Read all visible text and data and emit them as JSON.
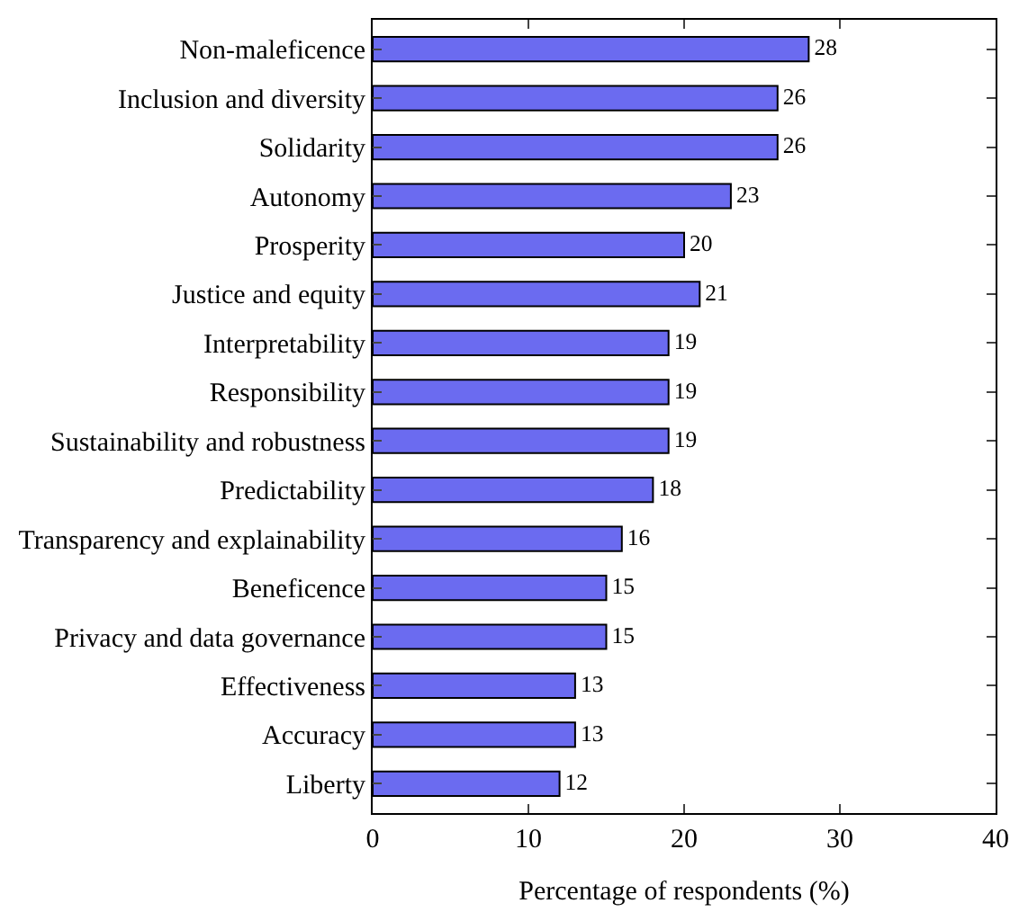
{
  "chart_data": {
    "type": "bar",
    "orientation": "horizontal",
    "xlabel": "Percentage of respondents (%)",
    "categories": [
      "Non-maleficence",
      "Inclusion and diversity",
      "Solidarity",
      "Autonomy",
      "Prosperity",
      "Justice and equity",
      "Interpretability",
      "Responsibility",
      "Sustainability and robustness",
      "Predictability",
      "Transparency and explainability",
      "Beneficence",
      "Privacy and data governance",
      "Effectiveness",
      "Accuracy",
      "Liberty"
    ],
    "values": [
      28,
      26,
      26,
      23,
      20,
      21,
      19,
      19,
      19,
      18,
      16,
      15,
      15,
      13,
      13,
      12
    ],
    "color": "#6b6bf0",
    "xlim": [
      0,
      40
    ],
    "xticks": [
      0,
      10,
      20,
      30,
      40
    ],
    "data_labels": true
  }
}
